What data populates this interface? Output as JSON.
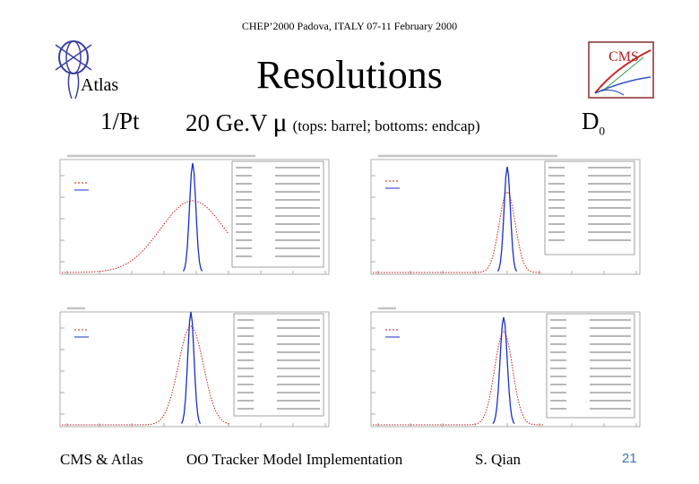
{
  "header": "CHEP’2000  Padova, ITALY   07-11 February 2000",
  "logos": {
    "left": "Atlas",
    "right": "CMS"
  },
  "title": "Resolutions",
  "subtitle": {
    "left": "1/Pt",
    "middle_main": "20 Ge.V",
    "middle_symbol": "μ",
    "middle_note": "(tops: barrel;  bottoms: endcap)",
    "right_main": "D",
    "right_sub": "0"
  },
  "footer": {
    "left": "CMS & Atlas",
    "middle": "OO Tracker Model Implementation",
    "right": "S. Qian",
    "page": "21"
  },
  "colors": {
    "blue": "#1a2fc8",
    "red": "#c81e1e",
    "accent": "#3c78b4"
  }
}
